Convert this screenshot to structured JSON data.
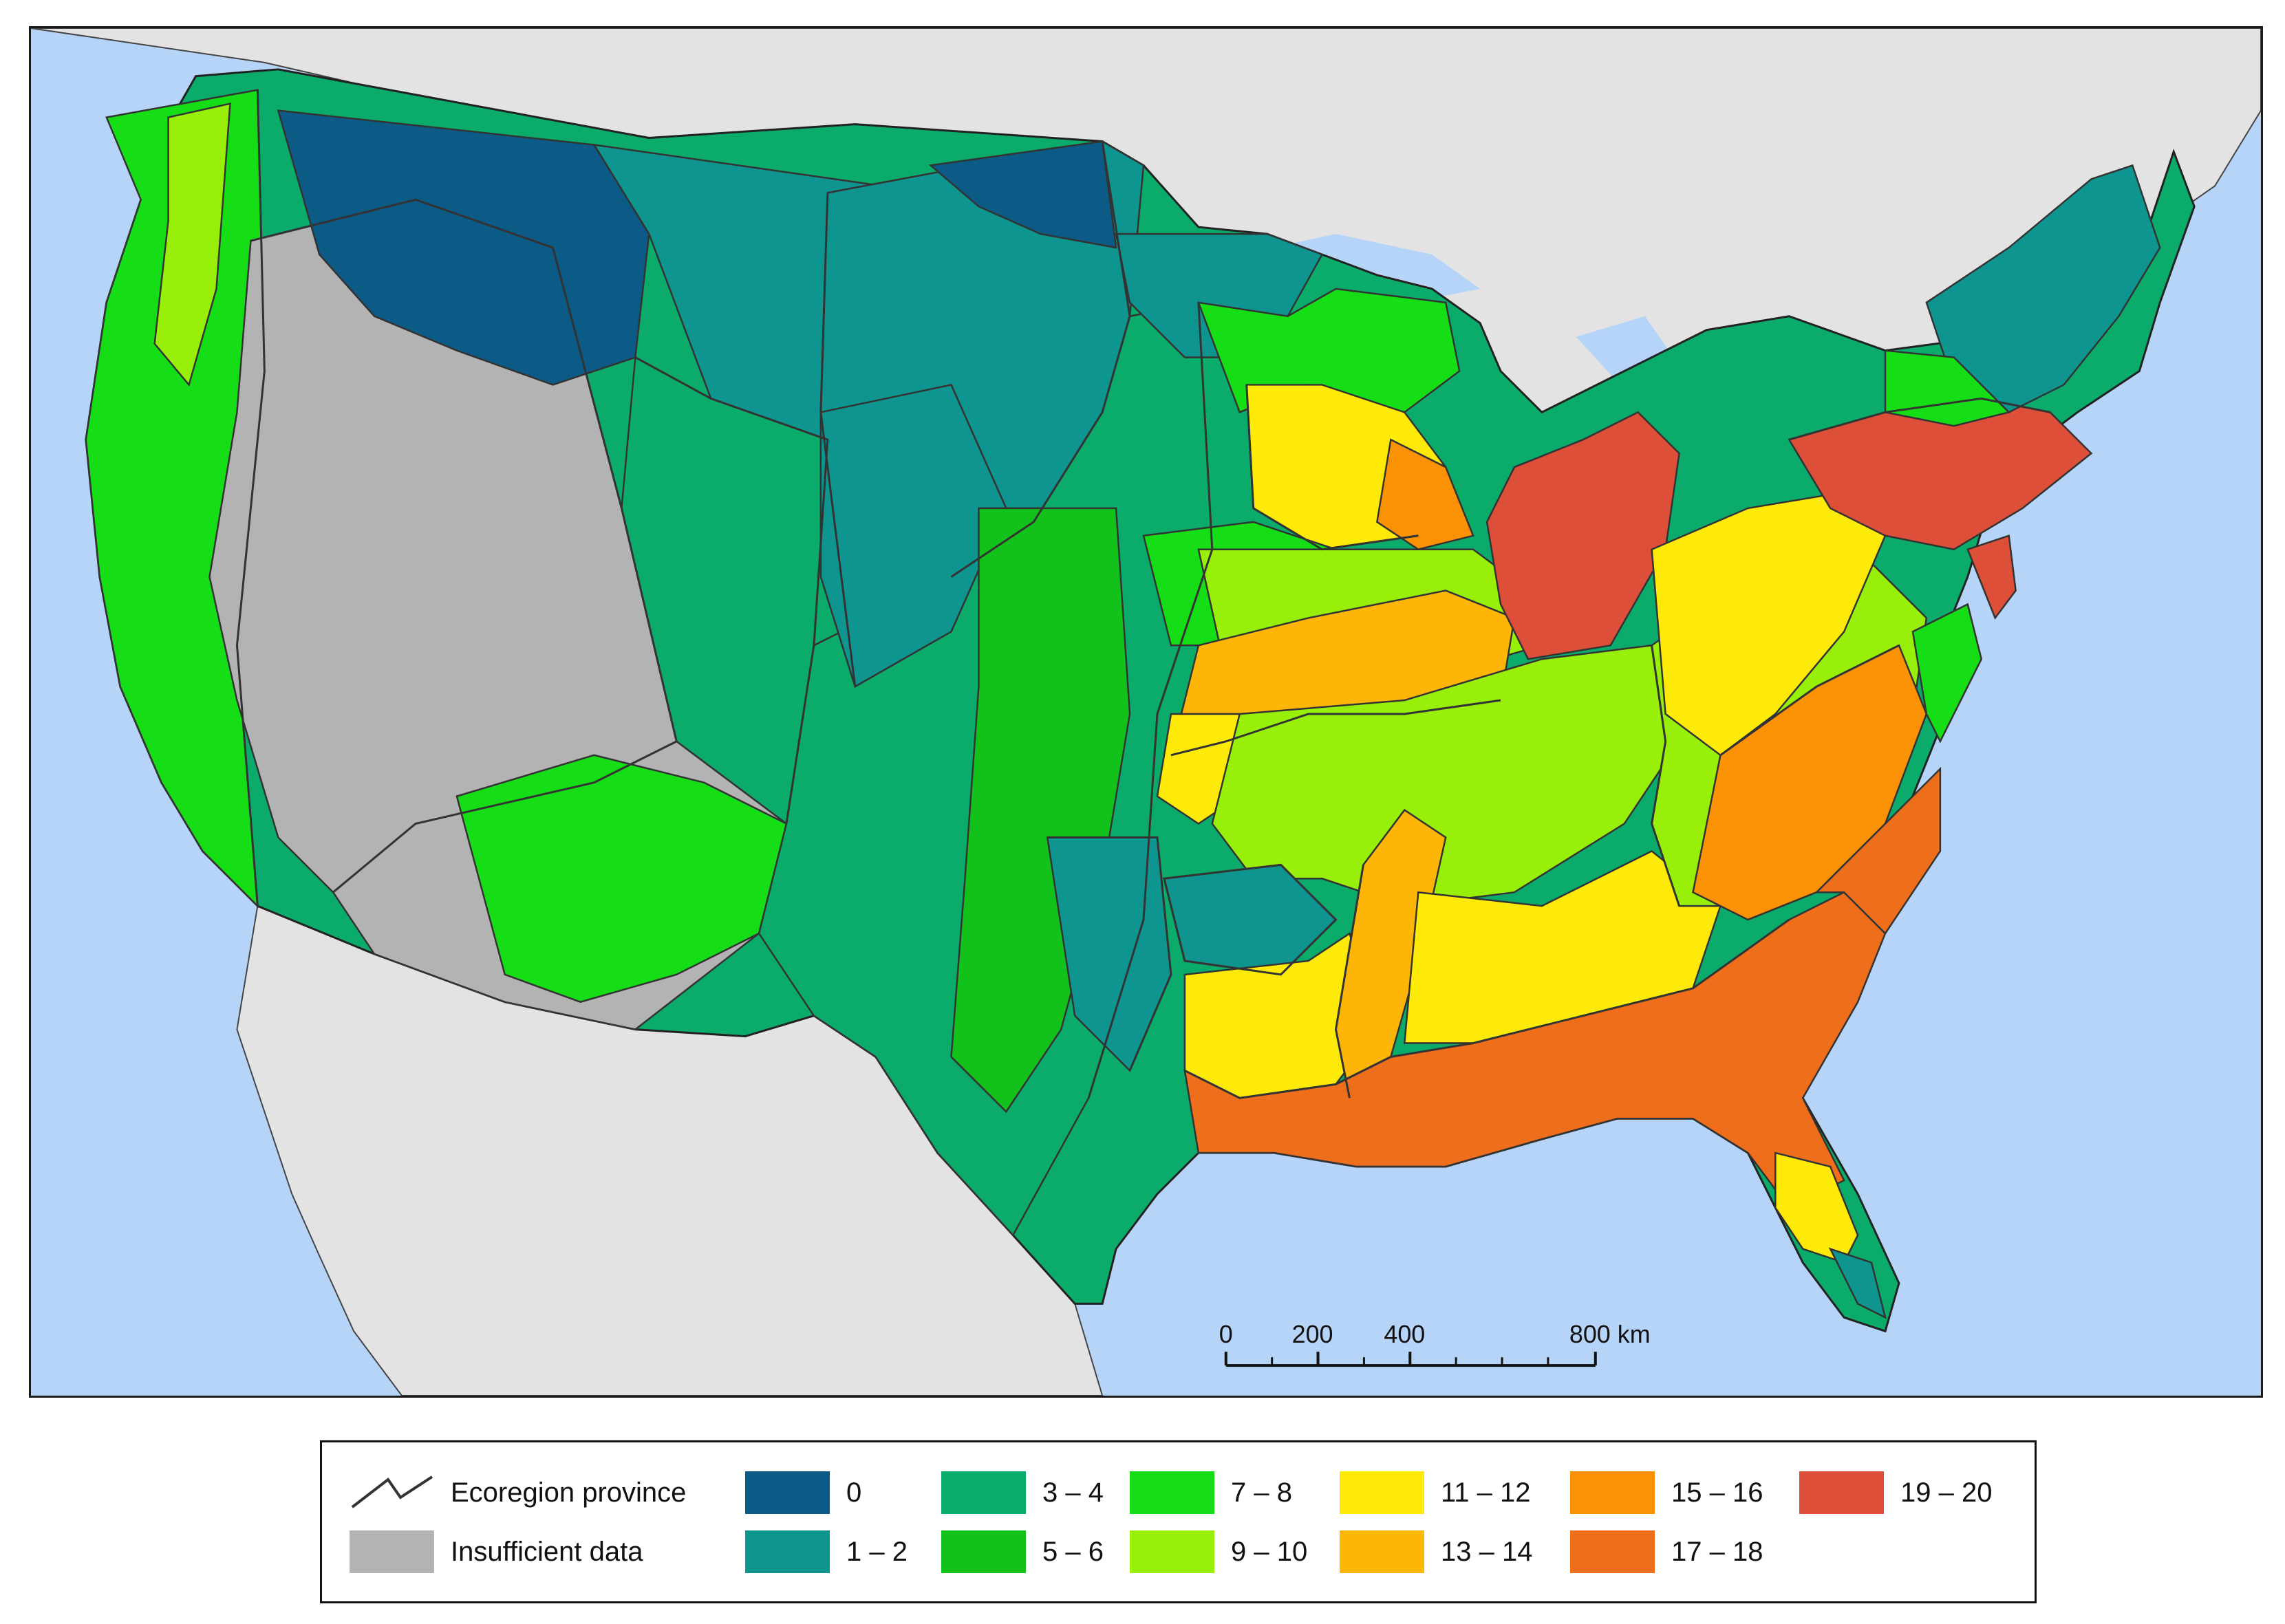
{
  "map": {
    "colors": {
      "ocean": "#b5d4f7",
      "land_outside": "#e3e3e3",
      "insufficient": "#b3b3b3",
      "boundary": "#333333"
    },
    "scale_bar": {
      "labels": [
        "0",
        "200",
        "400",
        "800 km"
      ]
    }
  },
  "legend": {
    "ecoregion_label": "Ecoregion province",
    "insufficient_label": "Insufficient data",
    "insufficient_color": "#b3b3b3",
    "classes": [
      {
        "label": "0",
        "color": "#0b5b86"
      },
      {
        "label": "1 – 2",
        "color": "#0f958f"
      },
      {
        "label": "3 – 4",
        "color": "#0bab6c"
      },
      {
        "label": "5 – 6",
        "color": "#12c21a"
      },
      {
        "label": "7 – 8",
        "color": "#16de16"
      },
      {
        "label": "9 – 10",
        "color": "#97ef0a"
      },
      {
        "label": "11 – 12",
        "color": "#fdea08"
      },
      {
        "label": "13 – 14",
        "color": "#fdb607"
      },
      {
        "label": "15 – 16",
        "color": "#fb9104"
      },
      {
        "label": "17 – 18",
        "color": "#ee6e1c"
      },
      {
        "label": "19 – 20",
        "color": "#dd4f39"
      }
    ]
  }
}
